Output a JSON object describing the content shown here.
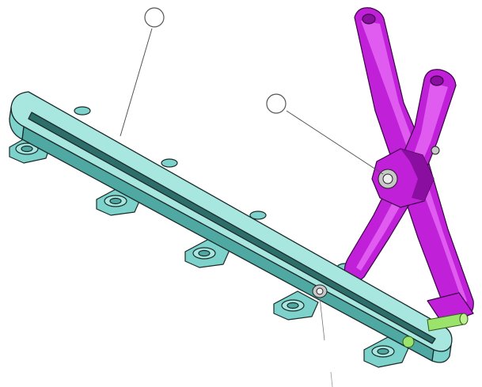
{
  "colors": {
    "rail_fill": "#7dd3cc",
    "rail_light": "#a8e6e0",
    "rail_dark": "#4fa9a2",
    "rail_edge": "#1b2a2a",
    "arm_fill": "#c020d8",
    "arm_light": "#e05cf0",
    "arm_dark": "#8a0fa0",
    "pin_green": "#9be36a",
    "bolt_gray": "#c8c8c8",
    "callout_line": "#555555",
    "background": "#ffffff"
  },
  "callouts": [
    {
      "part": "rail"
    },
    {
      "part": "scissor-arm-pivot"
    }
  ],
  "mount_tabs": 5
}
